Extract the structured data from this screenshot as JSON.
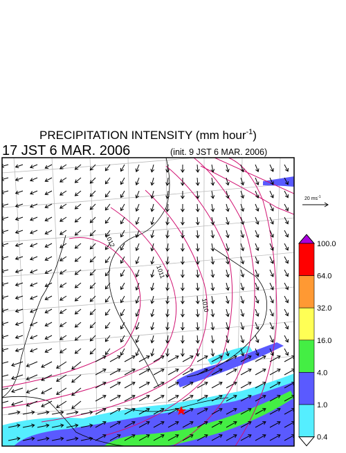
{
  "header": {
    "title": [
      "PRECIPITATION INTENSITY (mm hour",
      "-1",
      ")"
    ],
    "valid_time": "17 JST 6 MAR. 2006",
    "init_time": "(init. 9 JST 6 MAR. 2006)"
  },
  "vector_scale": [
    "20 ms",
    "-1"
  ],
  "isobars": [
    "1012",
    "1011",
    "1010"
  ],
  "legend": {
    "labels": [
      "100.0",
      "64.0",
      "32.0",
      "16.0",
      "4.0",
      "1.0",
      "0.4"
    ],
    "colors": [
      "#ff0000",
      "#ff9933",
      "#ffff55",
      "#44ee44",
      "#5a5aff",
      "#55eeff"
    ],
    "over_color": "#aa00dd",
    "under_color": "#ffffff"
  }
}
